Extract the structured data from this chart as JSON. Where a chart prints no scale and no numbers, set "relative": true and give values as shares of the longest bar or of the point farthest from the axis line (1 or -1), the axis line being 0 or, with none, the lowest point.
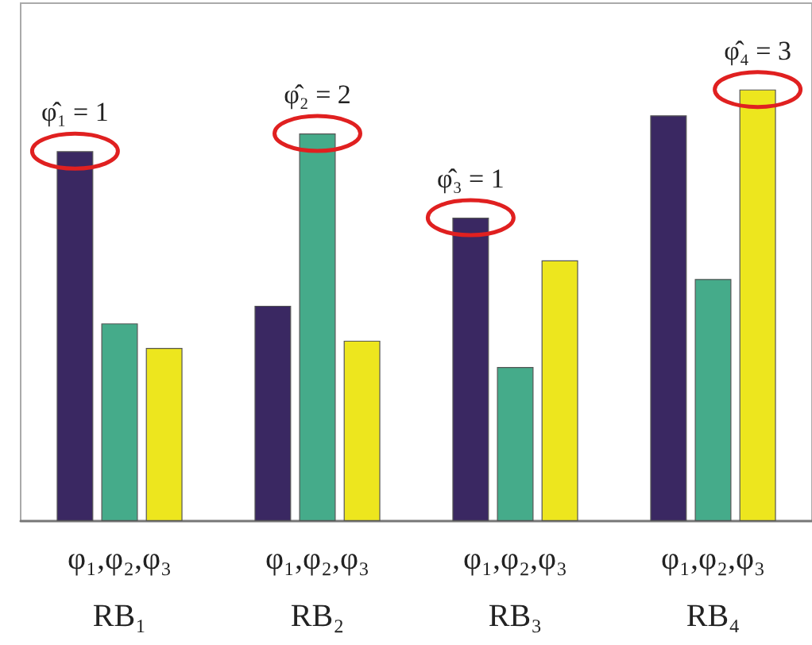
{
  "chart_data": {
    "type": "bar",
    "relative": true,
    "categories": [
      "φ₁,φ₂,φ₃\nRB₁",
      "φ₁,φ₂,φ₃\nRB₂",
      "φ₁,φ₂,φ₃\nRB₃",
      "φ₁,φ₂,φ₃\nRB₄"
    ],
    "series": [
      {
        "color": "#3a2862",
        "values": [
          0.857,
          0.499,
          0.703,
          0.94
        ]
      },
      {
        "color": "#45ab8a",
        "values": [
          0.458,
          0.898,
          0.357,
          0.561
        ]
      },
      {
        "color": "#ede61e",
        "values": [
          0.401,
          0.418,
          0.604,
          1
        ]
      }
    ],
    "annotations": [
      "φ̂₁ = 1",
      "φ̂₂ = 2",
      "φ̂₃ = 1",
      "φ̂₄ = 3"
    ]
  }
}
